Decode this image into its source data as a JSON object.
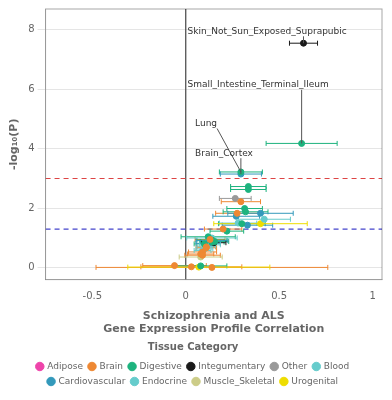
{
  "chart_data": {
    "type": "scatter",
    "xlabel": "Schizophrenia and ALS\nGene Expression Profile Correlation",
    "ylabel": "-log₁₀(P)",
    "xlim": [
      -0.75,
      1.05
    ],
    "xticks": [
      -0.5,
      0,
      0.5,
      1
    ],
    "ylim": [
      -0.4,
      8.7
    ],
    "yticks": [
      0,
      2,
      4,
      6,
      8
    ],
    "grid": "y",
    "legend": "bottom",
    "legend_title": "Tissue Category",
    "marker": "circle",
    "vlines": [
      {
        "x": 0.0,
        "color": "#444444",
        "line_style": "solid"
      }
    ],
    "hlines": [
      {
        "y": 3.0,
        "color": "#dd4444",
        "line_style": "dashed"
      },
      {
        "y": 1.3,
        "color": "#4444cc",
        "line_style": "dashed"
      }
    ],
    "series": [
      {
        "name": "Adipose",
        "color": "#ee44aa",
        "x": [],
        "values": [],
        "xerr": []
      },
      {
        "name": "Brain",
        "color": "#ee8833",
        "x": [
          0.295,
          0.275,
          0.2,
          0.13,
          0.11,
          0.11,
          0.09,
          0.08,
          0.09,
          -0.06,
          0.03,
          0.14
        ],
        "values": [
          2.22,
          1.83,
          1.3,
          0.95,
          0.7,
          0.67,
          0.53,
          0.46,
          0.42,
          0.07,
          0.03,
          0.01
        ],
        "xerr": [
          0.105,
          0.115,
          0.1,
          0.08,
          0.05,
          0.055,
          0.075,
          0.07,
          0.095,
          0.17,
          0.27,
          0.62
        ]
      },
      {
        "name": "Digestive",
        "color": "#1db37e",
        "x": [
          0.62,
          0.295,
          0.335,
          0.335,
          0.315,
          0.32,
          0.3,
          0.22,
          0.12,
          0.14,
          0.155,
          0.14,
          0.1,
          0.08
        ],
        "values": [
          4.18,
          3.22,
          2.73,
          2.63,
          1.99,
          1.88,
          1.48,
          1.23,
          1.04,
          0.93,
          0.88,
          0.86,
          0.8,
          0.06
        ],
        "xerr": [
          0.19,
          0.115,
          0.095,
          0.095,
          0.095,
          0.12,
          0.125,
          0.09,
          0.145,
          0.08,
          0.075,
          0.065,
          0.055,
          0.14
        ]
      },
      {
        "name": "Integumentary",
        "color": "#1a1a1a",
        "x": [
          0.63,
          0.15
        ],
        "values": [
          7.55,
          0.84
        ],
        "xerr": [
          0.075,
          0.065
        ]
      },
      {
        "name": "Other",
        "color": "#999999",
        "x": [
          0.265
        ],
        "values": [
          2.33
        ],
        "xerr": [
          0.085
        ]
      },
      {
        "name": "Blood",
        "color": "#66cccc",
        "x": [
          0.28,
          0.11,
          0.1,
          0.09
        ],
        "values": [
          1.5,
          0.73,
          0.63,
          0.58
        ],
        "xerr": [
          0.1,
          0.05,
          0.045,
          0.045
        ]
      },
      {
        "name": "Cardiovascular",
        "color": "#3399bb",
        "x": [
          0.295,
          0.4,
          0.27,
          0.33,
          0.14,
          0.12
        ],
        "values": [
          3.15,
          1.83,
          1.73,
          1.43,
          0.91,
          0.82
        ],
        "xerr": [
          0.11,
          0.175,
          0.125,
          0.135,
          0.085,
          0.065
        ]
      },
      {
        "name": "Endocrine",
        "color": "#66cccc",
        "x": [
          0.42,
          0.14,
          0.13
        ],
        "values": [
          1.63,
          1.0,
          0.77
        ],
        "xerr": [
          0.14,
          0.135,
          0.055
        ]
      },
      {
        "name": "Muscle_Skeletal",
        "color": "#cccc88",
        "x": [
          0.08
        ],
        "values": [
          0.36
        ],
        "xerr": [
          0.115
        ]
      },
      {
        "name": "Urogenital",
        "color": "#eedd00",
        "x": [
          0.4,
          0.07
        ],
        "values": [
          1.48,
          0.02
        ],
        "xerr": [
          0.25,
          0.38
        ]
      }
    ],
    "annotations": [
      {
        "text": "Skin_Not_Sun_Exposed_Suprapubic",
        "xy": [
          0.63,
          7.55
        ],
        "xytext": [
          0.01,
          7.95
        ]
      },
      {
        "text": "Small_Intestine_Terminal_Ileum",
        "xy": [
          0.62,
          4.18
        ],
        "xytext": [
          0.01,
          6.15
        ]
      },
      {
        "text": "Lung",
        "xy": [
          0.295,
          3.22
        ],
        "xytext": [
          0.05,
          4.85
        ]
      },
      {
        "text": "Brain_Cortex",
        "xy": [
          0.295,
          3.15
        ],
        "xytext": [
          0.05,
          3.85
        ]
      }
    ]
  }
}
